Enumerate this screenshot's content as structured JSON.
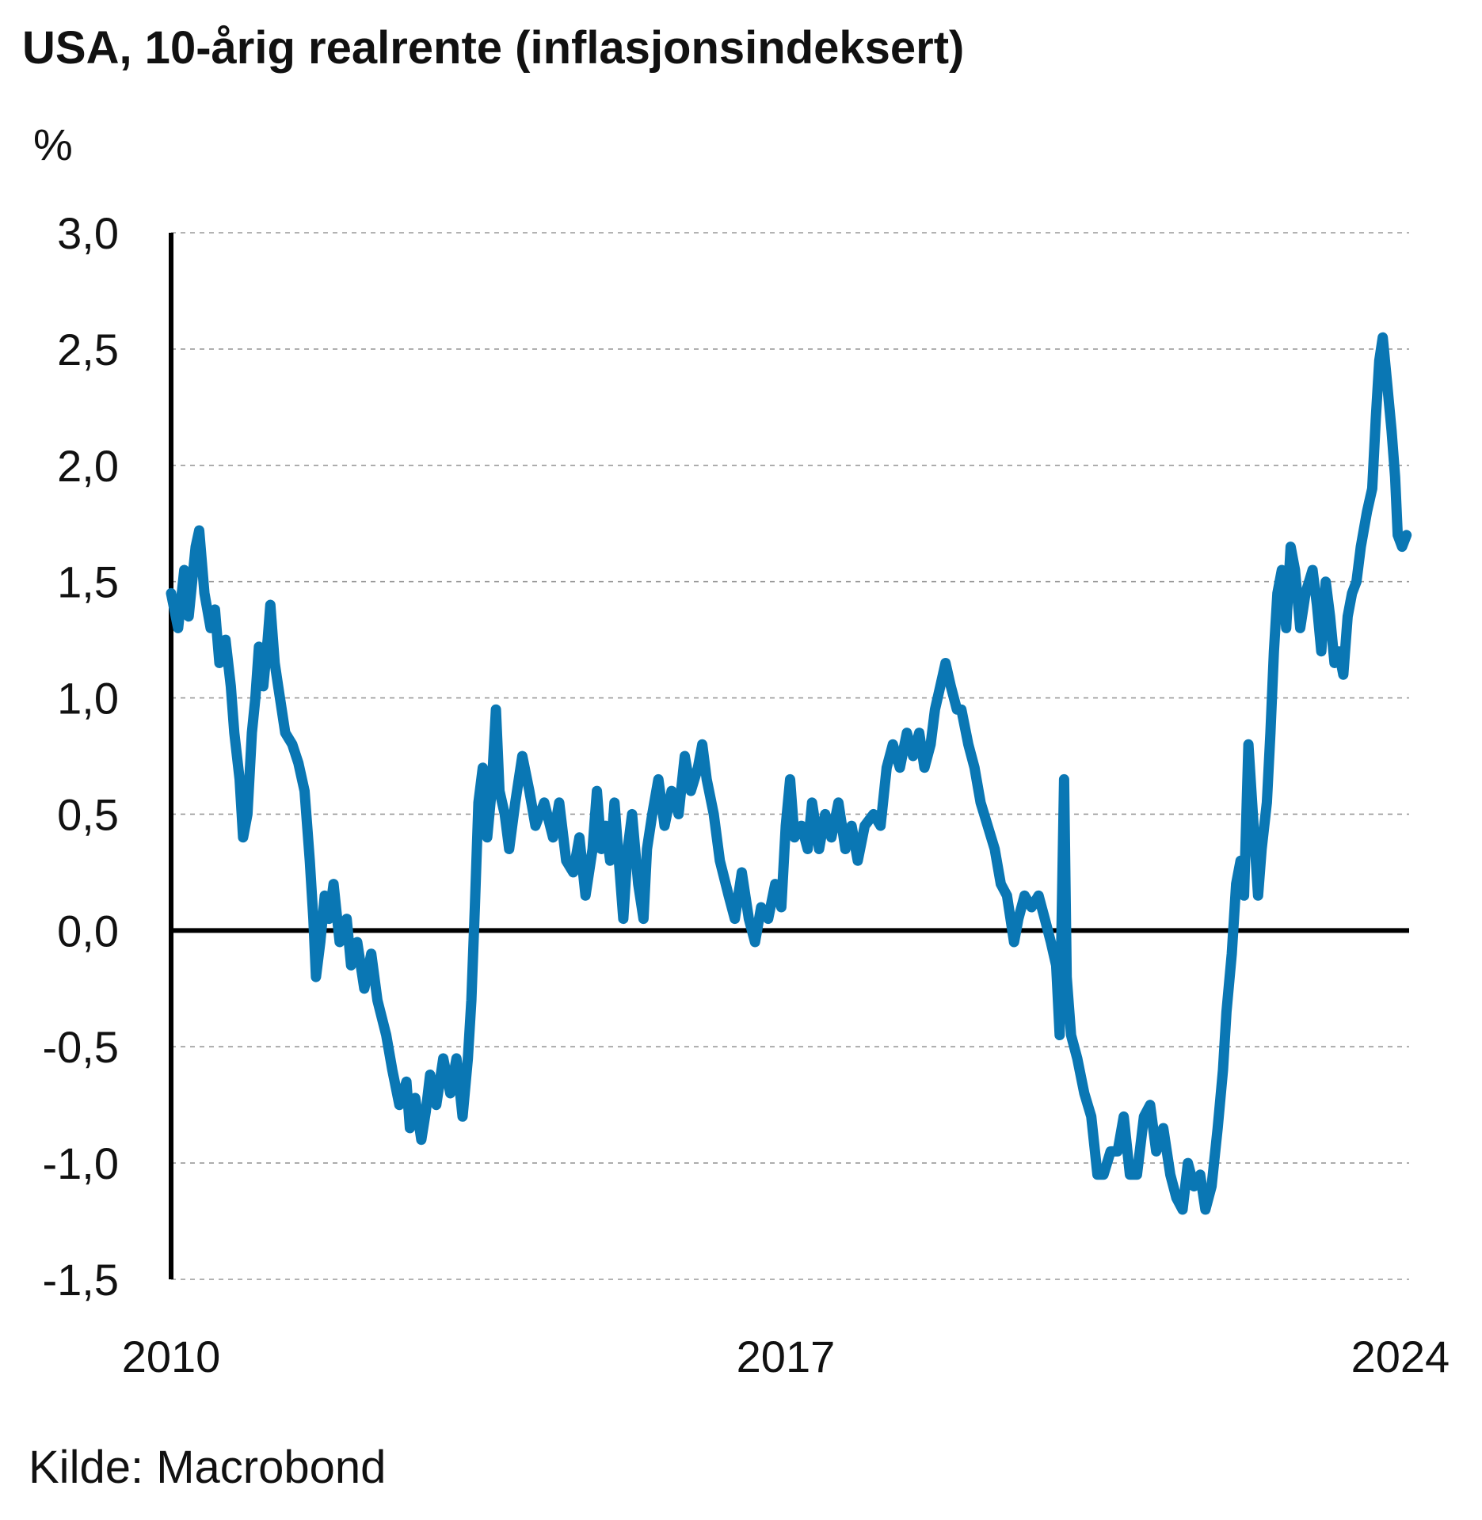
{
  "chart_data": {
    "type": "line",
    "title": "USA, 10-årig realrente (inflasjonsindeksert)",
    "unit_label": "%",
    "source": "Kilde: Macrobond",
    "ylim": [
      -1.5,
      3.0
    ],
    "y_ticks": [
      {
        "value": 3.0,
        "label": "3,0"
      },
      {
        "value": 2.5,
        "label": "2,5"
      },
      {
        "value": 2.0,
        "label": "2,0"
      },
      {
        "value": 1.5,
        "label": "1,5"
      },
      {
        "value": 1.0,
        "label": "1,0"
      },
      {
        "value": 0.5,
        "label": "0,5"
      },
      {
        "value": 0.0,
        "label": "0,0"
      },
      {
        "value": -0.5,
        "label": "-0,5"
      },
      {
        "value": -1.0,
        "label": "-1,0"
      },
      {
        "value": -1.5,
        "label": "-1,5"
      }
    ],
    "xlim": [
      2010.0,
      2024.1
    ],
    "x_ticks": [
      {
        "value": 2010,
        "label": "2010"
      },
      {
        "value": 2017,
        "label": "2017"
      },
      {
        "value": 2024,
        "label": "2024"
      }
    ],
    "grid": true,
    "line_color": "#0a77b4",
    "series": [
      {
        "values": [
          [
            2010.0,
            1.45
          ],
          [
            2010.08,
            1.3
          ],
          [
            2010.15,
            1.55
          ],
          [
            2010.2,
            1.35
          ],
          [
            2010.28,
            1.65
          ],
          [
            2010.32,
            1.72
          ],
          [
            2010.38,
            1.45
          ],
          [
            2010.45,
            1.3
          ],
          [
            2010.5,
            1.38
          ],
          [
            2010.55,
            1.15
          ],
          [
            2010.62,
            1.25
          ],
          [
            2010.68,
            1.05
          ],
          [
            2010.72,
            0.85
          ],
          [
            2010.78,
            0.65
          ],
          [
            2010.82,
            0.4
          ],
          [
            2010.87,
            0.5
          ],
          [
            2010.92,
            0.85
          ],
          [
            2010.96,
            1.0
          ],
          [
            2011.0,
            1.22
          ],
          [
            2011.05,
            1.05
          ],
          [
            2011.1,
            1.25
          ],
          [
            2011.13,
            1.4
          ],
          [
            2011.18,
            1.15
          ],
          [
            2011.22,
            1.05
          ],
          [
            2011.3,
            0.85
          ],
          [
            2011.38,
            0.8
          ],
          [
            2011.45,
            0.72
          ],
          [
            2011.52,
            0.6
          ],
          [
            2011.58,
            0.3
          ],
          [
            2011.62,
            0.05
          ],
          [
            2011.65,
            -0.2
          ],
          [
            2011.7,
            -0.05
          ],
          [
            2011.75,
            0.15
          ],
          [
            2011.8,
            0.05
          ],
          [
            2011.85,
            0.2
          ],
          [
            2011.92,
            -0.05
          ],
          [
            2012.0,
            0.05
          ],
          [
            2012.05,
            -0.15
          ],
          [
            2012.12,
            -0.05
          ],
          [
            2012.2,
            -0.25
          ],
          [
            2012.28,
            -0.1
          ],
          [
            2012.35,
            -0.3
          ],
          [
            2012.45,
            -0.45
          ],
          [
            2012.52,
            -0.6
          ],
          [
            2012.6,
            -0.75
          ],
          [
            2012.68,
            -0.65
          ],
          [
            2012.72,
            -0.85
          ],
          [
            2012.78,
            -0.72
          ],
          [
            2012.85,
            -0.9
          ],
          [
            2012.9,
            -0.78
          ],
          [
            2012.95,
            -0.62
          ],
          [
            2013.02,
            -0.75
          ],
          [
            2013.1,
            -0.55
          ],
          [
            2013.18,
            -0.7
          ],
          [
            2013.25,
            -0.55
          ],
          [
            2013.32,
            -0.8
          ],
          [
            2013.38,
            -0.55
          ],
          [
            2013.42,
            -0.3
          ],
          [
            2013.46,
            0.1
          ],
          [
            2013.5,
            0.55
          ],
          [
            2013.55,
            0.7
          ],
          [
            2013.6,
            0.4
          ],
          [
            2013.65,
            0.6
          ],
          [
            2013.7,
            0.95
          ],
          [
            2013.74,
            0.6
          ],
          [
            2013.8,
            0.5
          ],
          [
            2013.85,
            0.35
          ],
          [
            2013.92,
            0.55
          ],
          [
            2014.0,
            0.75
          ],
          [
            2014.08,
            0.6
          ],
          [
            2014.15,
            0.45
          ],
          [
            2014.25,
            0.55
          ],
          [
            2014.35,
            0.4
          ],
          [
            2014.42,
            0.55
          ],
          [
            2014.5,
            0.3
          ],
          [
            2014.58,
            0.25
          ],
          [
            2014.65,
            0.4
          ],
          [
            2014.72,
            0.15
          ],
          [
            2014.8,
            0.35
          ],
          [
            2014.85,
            0.6
          ],
          [
            2014.9,
            0.35
          ],
          [
            2014.95,
            0.45
          ],
          [
            2015.0,
            0.3
          ],
          [
            2015.05,
            0.55
          ],
          [
            2015.1,
            0.3
          ],
          [
            2015.15,
            0.05
          ],
          [
            2015.2,
            0.35
          ],
          [
            2015.25,
            0.5
          ],
          [
            2015.32,
            0.2
          ],
          [
            2015.38,
            0.05
          ],
          [
            2015.42,
            0.35
          ],
          [
            2015.48,
            0.5
          ],
          [
            2015.55,
            0.65
          ],
          [
            2015.62,
            0.45
          ],
          [
            2015.7,
            0.6
          ],
          [
            2015.78,
            0.5
          ],
          [
            2015.85,
            0.75
          ],
          [
            2015.92,
            0.6
          ],
          [
            2016.0,
            0.7
          ],
          [
            2016.05,
            0.8
          ],
          [
            2016.1,
            0.65
          ],
          [
            2016.18,
            0.5
          ],
          [
            2016.25,
            0.3
          ],
          [
            2016.35,
            0.15
          ],
          [
            2016.42,
            0.05
          ],
          [
            2016.5,
            0.25
          ],
          [
            2016.58,
            0.05
          ],
          [
            2016.65,
            -0.05
          ],
          [
            2016.72,
            0.1
          ],
          [
            2016.8,
            0.05
          ],
          [
            2016.88,
            0.2
          ],
          [
            2016.95,
            0.1
          ],
          [
            2017.0,
            0.45
          ],
          [
            2017.05,
            0.65
          ],
          [
            2017.1,
            0.4
          ],
          [
            2017.18,
            0.45
          ],
          [
            2017.25,
            0.35
          ],
          [
            2017.3,
            0.55
          ],
          [
            2017.38,
            0.35
          ],
          [
            2017.45,
            0.5
          ],
          [
            2017.52,
            0.4
          ],
          [
            2017.6,
            0.55
          ],
          [
            2017.68,
            0.35
          ],
          [
            2017.75,
            0.45
          ],
          [
            2017.82,
            0.3
          ],
          [
            2017.9,
            0.45
          ],
          [
            2018.0,
            0.5
          ],
          [
            2018.08,
            0.45
          ],
          [
            2018.15,
            0.7
          ],
          [
            2018.22,
            0.8
          ],
          [
            2018.3,
            0.7
          ],
          [
            2018.38,
            0.85
          ],
          [
            2018.45,
            0.75
          ],
          [
            2018.52,
            0.85
          ],
          [
            2018.58,
            0.7
          ],
          [
            2018.65,
            0.8
          ],
          [
            2018.7,
            0.95
          ],
          [
            2018.76,
            1.05
          ],
          [
            2018.82,
            1.15
          ],
          [
            2018.88,
            1.05
          ],
          [
            2018.95,
            0.95
          ],
          [
            2019.0,
            0.95
          ],
          [
            2019.08,
            0.8
          ],
          [
            2019.15,
            0.7
          ],
          [
            2019.22,
            0.55
          ],
          [
            2019.3,
            0.45
          ],
          [
            2019.38,
            0.35
          ],
          [
            2019.45,
            0.2
          ],
          [
            2019.52,
            0.15
          ],
          [
            2019.6,
            -0.05
          ],
          [
            2019.65,
            0.05
          ],
          [
            2019.72,
            0.15
          ],
          [
            2019.8,
            0.1
          ],
          [
            2019.88,
            0.15
          ],
          [
            2019.95,
            0.05
          ],
          [
            2020.02,
            -0.05
          ],
          [
            2020.08,
            -0.15
          ],
          [
            2020.12,
            -0.45
          ],
          [
            2020.17,
            0.65
          ],
          [
            2020.2,
            -0.2
          ],
          [
            2020.25,
            -0.45
          ],
          [
            2020.32,
            -0.55
          ],
          [
            2020.4,
            -0.7
          ],
          [
            2020.48,
            -0.8
          ],
          [
            2020.55,
            -1.05
          ],
          [
            2020.62,
            -1.05
          ],
          [
            2020.7,
            -0.95
          ],
          [
            2020.78,
            -0.95
          ],
          [
            2020.85,
            -0.8
          ],
          [
            2020.92,
            -1.05
          ],
          [
            2021.0,
            -1.05
          ],
          [
            2021.08,
            -0.8
          ],
          [
            2021.15,
            -0.75
          ],
          [
            2021.22,
            -0.95
          ],
          [
            2021.3,
            -0.85
          ],
          [
            2021.38,
            -1.05
          ],
          [
            2021.45,
            -1.15
          ],
          [
            2021.52,
            -1.2
          ],
          [
            2021.58,
            -1.0
          ],
          [
            2021.65,
            -1.1
          ],
          [
            2021.72,
            -1.05
          ],
          [
            2021.78,
            -1.2
          ],
          [
            2021.85,
            -1.1
          ],
          [
            2021.92,
            -0.85
          ],
          [
            2021.98,
            -0.6
          ],
          [
            2022.02,
            -0.35
          ],
          [
            2022.08,
            -0.1
          ],
          [
            2022.13,
            0.2
          ],
          [
            2022.18,
            0.3
          ],
          [
            2022.22,
            0.15
          ],
          [
            2022.27,
            0.8
          ],
          [
            2022.32,
            0.5
          ],
          [
            2022.38,
            0.15
          ],
          [
            2022.42,
            0.35
          ],
          [
            2022.48,
            0.55
          ],
          [
            2022.52,
            0.85
          ],
          [
            2022.56,
            1.2
          ],
          [
            2022.6,
            1.45
          ],
          [
            2022.65,
            1.55
          ],
          [
            2022.7,
            1.3
          ],
          [
            2022.75,
            1.65
          ],
          [
            2022.8,
            1.55
          ],
          [
            2022.86,
            1.3
          ],
          [
            2022.92,
            1.45
          ],
          [
            2023.0,
            1.55
          ],
          [
            2023.05,
            1.4
          ],
          [
            2023.1,
            1.2
          ],
          [
            2023.15,
            1.5
          ],
          [
            2023.2,
            1.35
          ],
          [
            2023.25,
            1.15
          ],
          [
            2023.3,
            1.2
          ],
          [
            2023.35,
            1.1
          ],
          [
            2023.4,
            1.35
          ],
          [
            2023.45,
            1.45
          ],
          [
            2023.5,
            1.5
          ],
          [
            2023.55,
            1.65
          ],
          [
            2023.62,
            1.8
          ],
          [
            2023.68,
            1.9
          ],
          [
            2023.72,
            2.2
          ],
          [
            2023.76,
            2.45
          ],
          [
            2023.8,
            2.55
          ],
          [
            2023.85,
            2.35
          ],
          [
            2023.9,
            2.15
          ],
          [
            2023.94,
            1.95
          ],
          [
            2023.97,
            1.7
          ],
          [
            2024.02,
            1.65
          ],
          [
            2024.07,
            1.7
          ]
        ]
      }
    ]
  }
}
